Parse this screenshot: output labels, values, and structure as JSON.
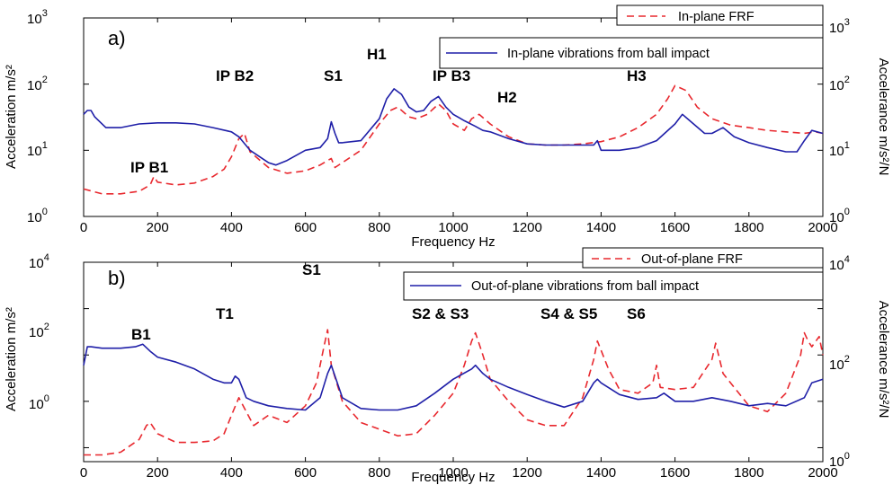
{
  "chart_data": [
    {
      "type": "line",
      "panel_label": "a)",
      "xlabel": "Frequency Hz",
      "ylabel": "Acceleration m/s²",
      "ylabel_right": "Accelerance m/s²/N",
      "xlim": [
        0,
        2000
      ],
      "ylim": [
        1,
        1000
      ],
      "yscale": "log",
      "xticks": [
        0,
        200,
        400,
        600,
        800,
        1000,
        1200,
        1400,
        1600,
        1800,
        2000
      ],
      "ytick_labels": [
        {
          "base": "10",
          "exp": "0"
        },
        {
          "base": "10",
          "exp": "1"
        },
        {
          "base": "10",
          "exp": "2"
        },
        {
          "base": "10",
          "exp": "3"
        }
      ],
      "grid": false,
      "legend": "top-right",
      "series": [
        {
          "name": "In-plane FRF",
          "color": "#e8282e",
          "style": "dashed",
          "x": [
            0,
            50,
            100,
            150,
            180,
            190,
            200,
            250,
            300,
            350,
            380,
            400,
            420,
            435,
            450,
            500,
            550,
            600,
            640,
            660,
            670,
            680,
            700,
            750,
            800,
            830,
            850,
            880,
            900,
            930,
            960,
            980,
            1000,
            1030,
            1050,
            1070,
            1100,
            1150,
            1200,
            1250,
            1300,
            1350,
            1400,
            1450,
            1500,
            1550,
            1580,
            1600,
            1630,
            1660,
            1700,
            1750,
            1800,
            1850,
            1900,
            1950,
            1980,
            2000
          ],
          "y": [
            2.6,
            2.2,
            2.2,
            2.4,
            3.0,
            4.0,
            3.3,
            3.0,
            3.2,
            4.0,
            5.2,
            8.0,
            15,
            18,
            9.5,
            5.5,
            4.5,
            4.9,
            6.0,
            7.0,
            7.5,
            5.5,
            6.5,
            10,
            25,
            40,
            45,
            32,
            30,
            35,
            50,
            40,
            25,
            20,
            30,
            35,
            25,
            16,
            12.5,
            12,
            12,
            12.5,
            13.5,
            16,
            22,
            35,
            60,
            95,
            80,
            45,
            30,
            24,
            22,
            20,
            19,
            18,
            19,
            18
          ]
        },
        {
          "name": "In-plane vibrations from ball impact",
          "color": "#1f1fa8",
          "style": "solid",
          "x": [
            0,
            10,
            20,
            30,
            60,
            100,
            150,
            200,
            250,
            300,
            350,
            400,
            420,
            450,
            500,
            520,
            550,
            600,
            640,
            660,
            670,
            680,
            690,
            700,
            750,
            800,
            820,
            840,
            860,
            880,
            900,
            920,
            940,
            960,
            980,
            1000,
            1030,
            1060,
            1080,
            1100,
            1150,
            1200,
            1250,
            1300,
            1350,
            1380,
            1390,
            1400,
            1450,
            1500,
            1550,
            1600,
            1620,
            1640,
            1680,
            1700,
            1730,
            1760,
            1800,
            1850,
            1900,
            1930,
            1950,
            1970,
            2000
          ],
          "y": [
            35,
            40,
            40,
            32,
            22,
            22,
            25,
            26,
            26,
            25,
            22,
            19,
            16,
            10,
            6.5,
            6.0,
            7.0,
            10,
            11,
            15,
            27,
            18,
            13,
            13,
            14,
            30,
            60,
            85,
            70,
            45,
            38,
            40,
            55,
            65,
            45,
            35,
            28,
            23,
            20,
            19,
            15,
            12.5,
            12,
            12,
            12,
            12,
            14,
            10,
            10,
            11,
            14,
            25,
            35,
            28,
            18,
            18,
            22,
            16,
            13,
            11,
            9.5,
            9.5,
            14,
            20,
            18
          ]
        }
      ],
      "annotations": [
        "IP B1",
        "IP B2",
        "S1",
        "H1",
        "IP B3",
        "H2",
        "H3"
      ]
    },
    {
      "type": "line",
      "panel_label": "b)",
      "xlabel": "Frequency Hz",
      "ylabel": "Acceleration m/s²",
      "ylabel_right": "Accelerance m/s²/N",
      "xlim": [
        0,
        2000
      ],
      "ylim": [
        0.5,
        10000
      ],
      "yscale": "log",
      "xticks": [
        0,
        200,
        400,
        600,
        800,
        1000,
        1200,
        1400,
        1600,
        1800,
        2000
      ],
      "ytick_labels": [
        {
          "base": "10",
          "exp": "0"
        },
        {
          "base": "10",
          "exp": "2"
        },
        {
          "base": "10",
          "exp": "4"
        }
      ],
      "ytick_labels_right": [
        {
          "base": "10",
          "exp": "0"
        },
        {
          "base": "10",
          "exp": "2"
        },
        {
          "base": "10",
          "exp": "4"
        }
      ],
      "grid": false,
      "legend": "top-right",
      "series": [
        {
          "name": "Out-of-plane FRF",
          "color": "#e8282e",
          "style": "dashed",
          "x": [
            0,
            50,
            100,
            150,
            170,
            180,
            200,
            250,
            300,
            350,
            380,
            400,
            420,
            440,
            460,
            500,
            550,
            600,
            630,
            650,
            660,
            670,
            700,
            750,
            800,
            850,
            900,
            950,
            1000,
            1030,
            1050,
            1060,
            1080,
            1100,
            1150,
            1200,
            1250,
            1300,
            1350,
            1380,
            1390,
            1420,
            1450,
            1500,
            1540,
            1550,
            1560,
            1600,
            1650,
            1700,
            1710,
            1730,
            1760,
            1800,
            1850,
            1900,
            1940,
            1950,
            1960,
            1970,
            1990,
            2000
          ],
          "y": [
            0.7,
            0.7,
            0.8,
            1.5,
            3.0,
            3.5,
            2.0,
            1.3,
            1.3,
            1.4,
            2.0,
            5.0,
            12,
            6.0,
            3.0,
            5.0,
            3.5,
            8.0,
            25,
            150,
            350,
            60,
            10,
            3.5,
            2.5,
            1.8,
            2.0,
            5.0,
            15,
            60,
            200,
            300,
            100,
            30,
            10,
            4.0,
            3.0,
            3.0,
            12,
            80,
            200,
            50,
            18,
            15,
            25,
            60,
            20,
            18,
            20,
            80,
            180,
            40,
            20,
            8.0,
            6.0,
            15,
            100,
            300,
            200,
            150,
            250,
            100
          ]
        },
        {
          "name": "Out-of-plane vibrations from ball impact",
          "color": "#1f1fa8",
          "style": "solid",
          "x": [
            0,
            10,
            20,
            50,
            100,
            140,
            160,
            180,
            200,
            250,
            300,
            350,
            380,
            400,
            410,
            420,
            440,
            460,
            500,
            550,
            600,
            640,
            660,
            670,
            680,
            700,
            750,
            800,
            850,
            900,
            950,
            1000,
            1050,
            1060,
            1080,
            1100,
            1150,
            1200,
            1250,
            1300,
            1350,
            1380,
            1390,
            1400,
            1450,
            1500,
            1550,
            1570,
            1600,
            1650,
            1700,
            1750,
            1800,
            1850,
            1900,
            1950,
            1970,
            2000
          ],
          "y": [
            60,
            150,
            150,
            140,
            140,
            150,
            170,
            120,
            90,
            70,
            50,
            30,
            25,
            25,
            35,
            30,
            12,
            10,
            8.0,
            7.0,
            6.5,
            12,
            40,
            60,
            35,
            12,
            7.0,
            6.5,
            6.5,
            8.0,
            15,
            30,
            50,
            60,
            40,
            30,
            20,
            14,
            10,
            7.5,
            10,
            25,
            30,
            25,
            14,
            11,
            12,
            15,
            10,
            10,
            12,
            10,
            8.0,
            9.0,
            8.0,
            12,
            25,
            30
          ]
        }
      ],
      "annotations": [
        "B1",
        "T1",
        "S1",
        "S2 & S3",
        "S4 & S5",
        "S6"
      ]
    }
  ]
}
